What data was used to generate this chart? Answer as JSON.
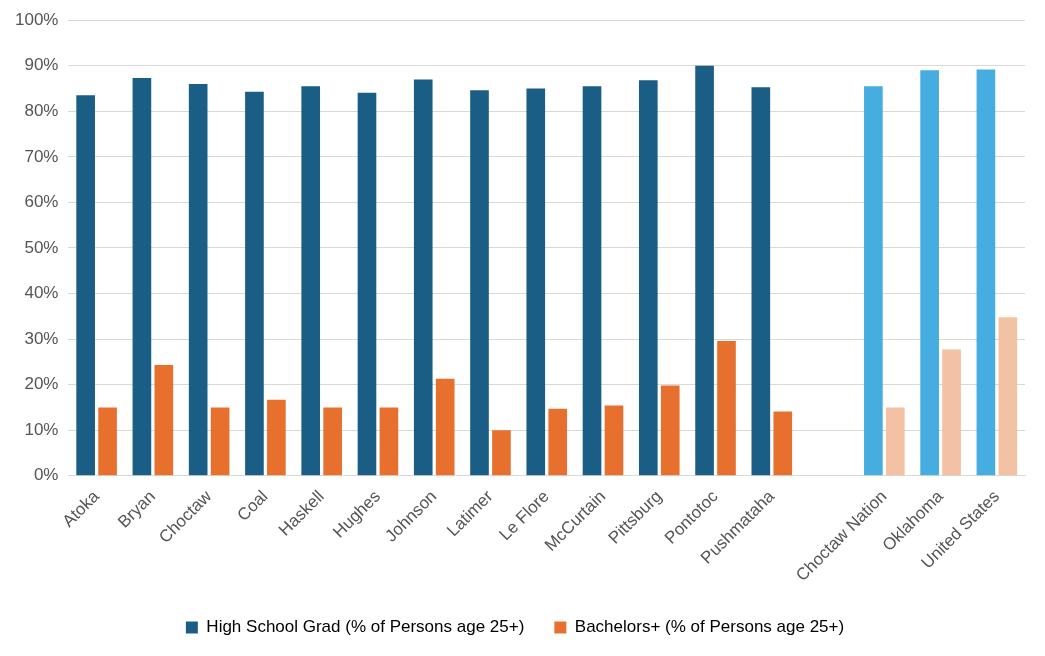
{
  "chart_data": {
    "type": "bar",
    "categories": [
      "Atoka",
      "Bryan",
      "Choctaw",
      "Coal",
      "Haskell",
      "Hughes",
      "Johnson",
      "Latimer",
      "Le Flore",
      "McCurtain",
      "Pittsburg",
      "Pontotoc",
      "Pushmataha",
      null,
      "Choctaw Nation",
      "Oklahoma",
      "United States"
    ],
    "series": [
      {
        "name": "High School Grad (% of Persons age 25+)",
        "color": "#1a5e85",
        "colors": [
          "#1a5e85",
          "#1a5e85",
          "#1a5e85",
          "#1a5e85",
          "#1a5e85",
          "#1a5e85",
          "#1a5e85",
          "#1a5e85",
          "#1a5e85",
          "#1a5e85",
          "#1a5e85",
          "#1a5e85",
          "#1a5e85",
          "#1a5e85",
          "#45ade0",
          "#45ade0",
          "#45ade0"
        ],
        "values": [
          83.5,
          87.3,
          86,
          84.3,
          85.5,
          84.1,
          87,
          84.6,
          85,
          85.5,
          86.8,
          90,
          85.3,
          null,
          85.5,
          89,
          89.2
        ]
      },
      {
        "name": "Bachelors+ (% of Persons age 25+)",
        "color": "#e8702e",
        "colors": [
          "#e8702e",
          "#e8702e",
          "#e8702e",
          "#e8702e",
          "#e8702e",
          "#e8702e",
          "#e8702e",
          "#e8702e",
          "#e8702e",
          "#e8702e",
          "#e8702e",
          "#e8702e",
          "#e8702e",
          "#e8702e",
          "#f3c2a4",
          "#f3c2a4",
          "#f3c2a4"
        ],
        "values": [
          15,
          24.3,
          15,
          16.7,
          15,
          15,
          21.3,
          10,
          14.7,
          15.4,
          19.8,
          29.6,
          14.1,
          null,
          15,
          27.7,
          34.8
        ]
      }
    ],
    "ylim": [
      0,
      100
    ],
    "yticks": [
      {
        "value": 0,
        "label": "0%"
      },
      {
        "value": 10,
        "label": "10%"
      },
      {
        "value": 20,
        "label": "20%"
      },
      {
        "value": 30,
        "label": "30%"
      },
      {
        "value": 40,
        "label": "40%"
      },
      {
        "value": 50,
        "label": "50%"
      },
      {
        "value": 60,
        "label": "60%"
      },
      {
        "value": 70,
        "label": "70%"
      },
      {
        "value": 80,
        "label": "80%"
      },
      {
        "value": 90,
        "label": "90%"
      },
      {
        "value": 100,
        "label": "100%"
      }
    ],
    "grid": "y",
    "legend": "bottom"
  }
}
